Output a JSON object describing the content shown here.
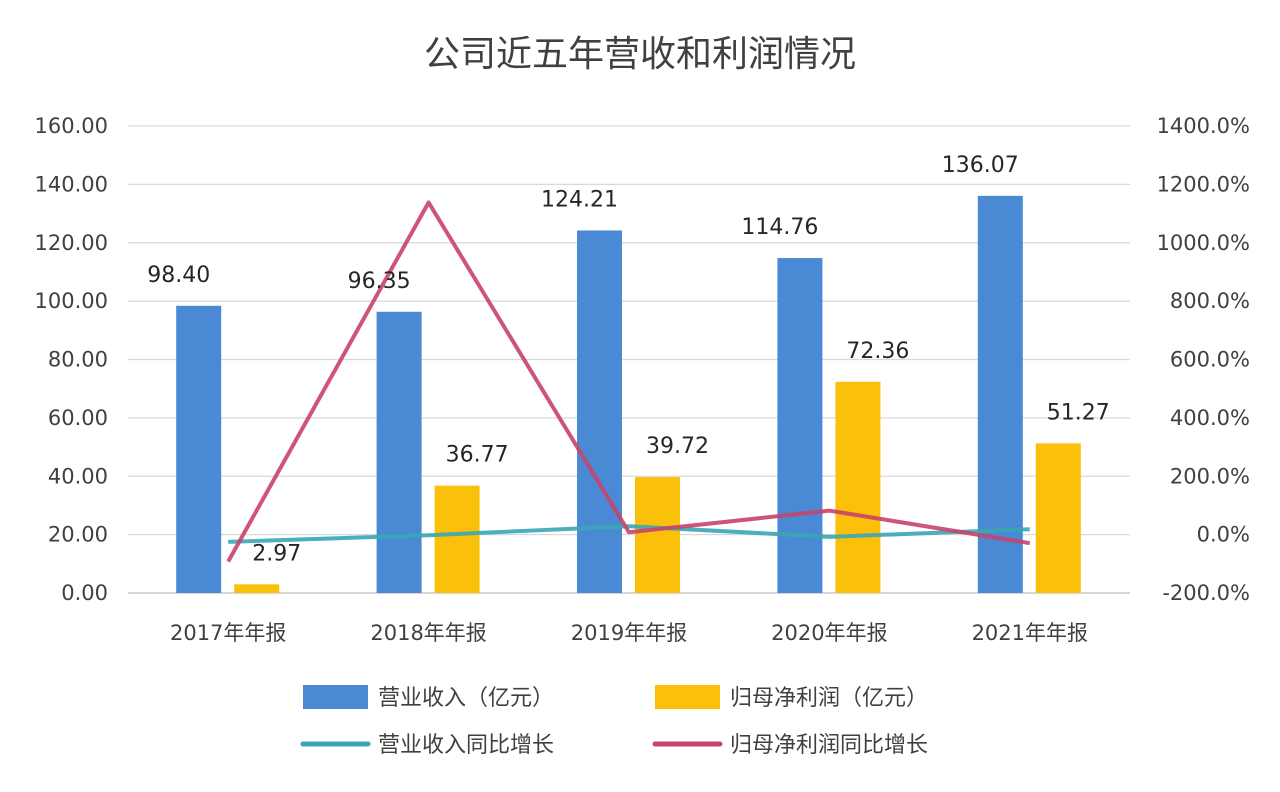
{
  "chart_data": {
    "type": "bar+line",
    "title": "公司近五年营收和利润情况",
    "categories": [
      "2017年年报",
      "2018年年报",
      "2019年年报",
      "2020年年报",
      "2021年年报"
    ],
    "left_axis": {
      "ylim": [
        0,
        160
      ],
      "ticks": [
        "0.00",
        "20.00",
        "40.00",
        "60.00",
        "80.00",
        "100.00",
        "120.00",
        "140.00",
        "160.00"
      ]
    },
    "right_axis": {
      "ylim": [
        -200,
        1400
      ],
      "ticks": [
        "-200.0%",
        "0.0%",
        "200.0%",
        "400.0%",
        "600.0%",
        "800.0%",
        "1000.0%",
        "1200.0%",
        "1400.0%"
      ]
    },
    "grid": true,
    "legend_position": "bottom",
    "series": [
      {
        "name": "营业收入（亿元）",
        "kind": "bar",
        "axis": "left",
        "color": "#4a8ad4",
        "values": [
          98.4,
          96.35,
          124.21,
          114.76,
          136.07
        ],
        "labels": [
          "98.40",
          "96.35",
          "124.21",
          "114.76",
          "136.07"
        ]
      },
      {
        "name": "归母净利润（亿元）",
        "kind": "bar",
        "axis": "left",
        "color": "#fbc10a",
        "values": [
          2.97,
          36.77,
          39.72,
          72.36,
          51.27
        ],
        "labels": [
          "2.97",
          "36.77",
          "39.72",
          "72.36",
          "51.27"
        ]
      },
      {
        "name": "营业收入同比增长",
        "kind": "line",
        "axis": "right",
        "color": "#3aa6b4",
        "values": [
          -25,
          -2.1,
          28.9,
          -7.6,
          18.6
        ]
      },
      {
        "name": "归母净利润同比增长",
        "kind": "line",
        "axis": "right",
        "color": "#c8426a",
        "values": [
          -92,
          1138,
          8.0,
          82.2,
          -29.1
        ]
      }
    ]
  }
}
